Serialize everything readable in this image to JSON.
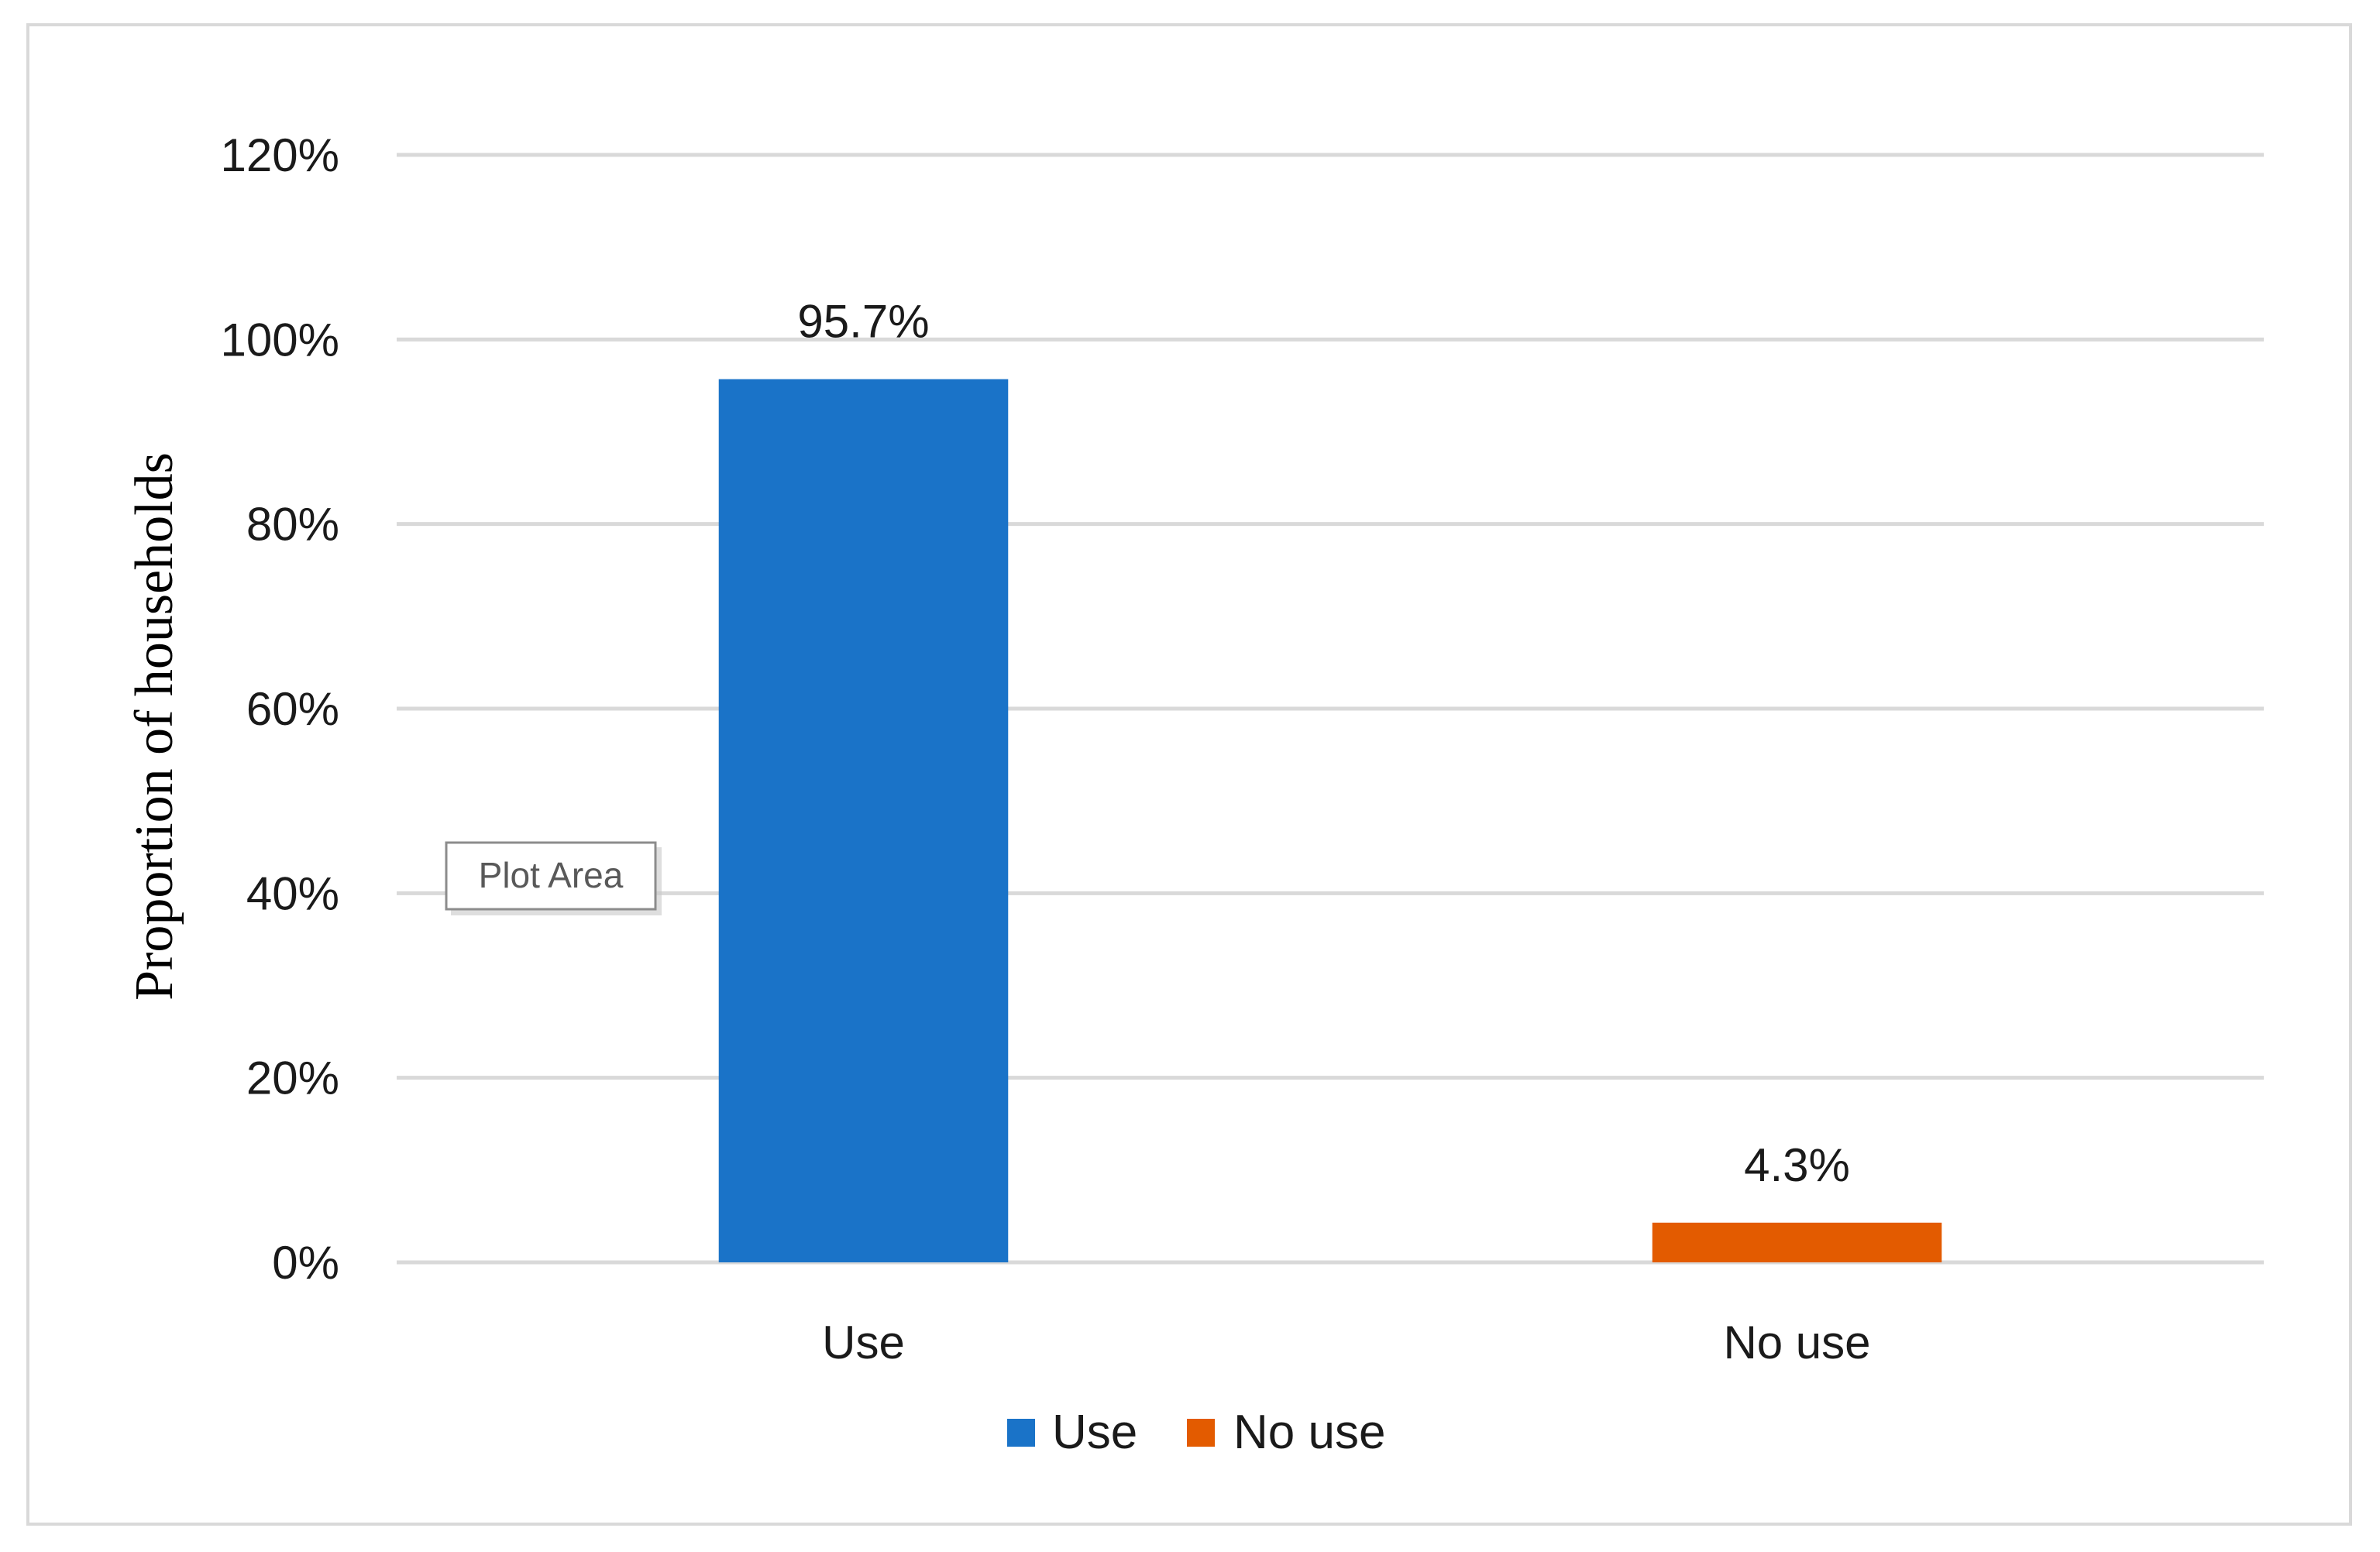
{
  "tooltip": {
    "label": "Plot Area"
  },
  "chart_data": {
    "type": "bar",
    "categories": [
      "Use",
      "No use"
    ],
    "values": [
      95.7,
      4.3
    ],
    "data_labels": [
      "95.7%",
      "4.3%"
    ],
    "colors": [
      "#1a73c8",
      "#e35b00"
    ],
    "xlabel": "",
    "ylabel": "Proportion of households",
    "ylim": [
      0,
      120
    ],
    "yticks": [
      0,
      20,
      40,
      60,
      80,
      100,
      120
    ],
    "ytick_labels": [
      "0%",
      "20%",
      "40%",
      "60%",
      "80%",
      "100%",
      "120%"
    ],
    "grid": true,
    "gridline_color": "#d9d9d9",
    "legend": {
      "placement": "bottom",
      "entries": [
        {
          "label": "Use",
          "color": "#1a73c8"
        },
        {
          "label": "No use",
          "color": "#e35b00"
        }
      ]
    }
  }
}
